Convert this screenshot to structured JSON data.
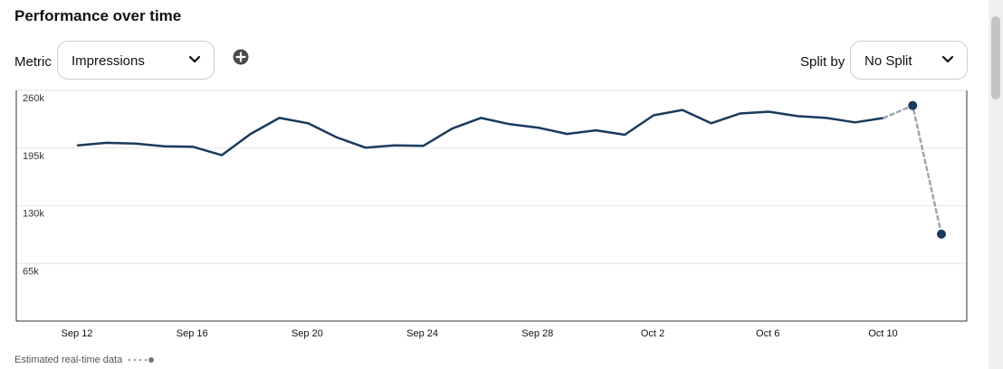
{
  "header": {
    "title": "Performance over time"
  },
  "controls": {
    "metric_label": "Metric",
    "metric_value": "Impressions",
    "split_label": "Split by",
    "split_value": "No Split"
  },
  "icons": {
    "add": "plus-circle-icon",
    "dropdown": "chevron-down-icon"
  },
  "colors": {
    "line": "#1a3a5c",
    "estimate": "#9aa7b4",
    "axis": "#333333",
    "grid": "#e6e6e6"
  },
  "legend": {
    "estimated_label": "Estimated real-time data"
  },
  "chart_data": {
    "type": "line",
    "title": "",
    "xlabel": "",
    "ylabel": "",
    "ylim": [
      0,
      260000
    ],
    "yticks": [
      65000,
      130000,
      195000,
      260000
    ],
    "ytick_labels": [
      "65k",
      "130k",
      "195k",
      "260k"
    ],
    "x": [
      "Sep 12",
      "Sep 13",
      "Sep 14",
      "Sep 15",
      "Sep 16",
      "Sep 17",
      "Sep 18",
      "Sep 19",
      "Sep 20",
      "Sep 21",
      "Sep 22",
      "Sep 23",
      "Sep 24",
      "Sep 25",
      "Sep 26",
      "Sep 27",
      "Sep 28",
      "Sep 29",
      "Sep 30",
      "Oct 1",
      "Oct 2",
      "Oct 3",
      "Oct 4",
      "Oct 5",
      "Oct 6",
      "Oct 7",
      "Oct 8",
      "Oct 9",
      "Oct 10",
      "Oct 11",
      "Oct 12"
    ],
    "xtick_labels": [
      "Sep 12",
      "Sep 16",
      "Sep 20",
      "Sep 24",
      "Sep 28",
      "Oct 2",
      "Oct 6",
      "Oct 10"
    ],
    "series": [
      {
        "values": [
          198000,
          201000,
          200000,
          197000,
          196500,
          187000,
          211000,
          229000,
          223000,
          207000,
          195500,
          198000,
          197500,
          217000,
          229000,
          222000,
          218000,
          211000,
          215000,
          210000,
          232000,
          238000,
          223000,
          234000,
          236000,
          231000,
          229000,
          224000,
          229000,
          null,
          null
        ]
      },
      {
        "values": [
          null,
          null,
          null,
          null,
          null,
          null,
          null,
          null,
          null,
          null,
          null,
          null,
          null,
          null,
          null,
          null,
          null,
          null,
          null,
          null,
          null,
          null,
          null,
          null,
          null,
          null,
          null,
          null,
          229000,
          243000,
          98000
        ]
      }
    ],
    "grid": true,
    "legend": "bottom-left"
  }
}
